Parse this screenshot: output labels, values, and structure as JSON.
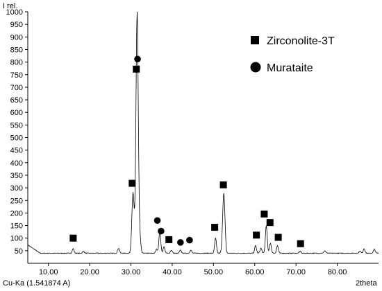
{
  "chart_data": {
    "type": "line",
    "title": "",
    "xlabel": "2theta",
    "ylabel": "I rel.",
    "xlim": [
      5,
      90
    ],
    "ylim": [
      0,
      1000
    ],
    "x_ticks": [
      "10.00",
      "20.00",
      "30.00",
      "40.00",
      "50.00",
      "60.00",
      "70.00",
      "80.00"
    ],
    "x_tick_values": [
      10,
      20,
      30,
      40,
      50,
      60,
      70,
      80
    ],
    "y_ticks": [
      "50",
      "100",
      "150",
      "200",
      "250",
      "300",
      "350",
      "400",
      "450",
      "500",
      "550",
      "600",
      "650",
      "700",
      "750",
      "800",
      "850",
      "900",
      "950",
      "1000"
    ],
    "y_tick_values": [
      50,
      100,
      150,
      200,
      250,
      300,
      350,
      400,
      450,
      500,
      550,
      600,
      650,
      700,
      750,
      800,
      850,
      900,
      950,
      1000
    ],
    "radiation_label": "Cu-Ka (1.541874 A)",
    "baseline": 40,
    "series": [
      {
        "peaks": [
          {
            "x": 16.0,
            "y": 58
          },
          {
            "x": 18.5,
            "y": 48
          },
          {
            "x": 27.0,
            "y": 60
          },
          {
            "x": 30.5,
            "y": 280
          },
          {
            "x": 31.5,
            "y": 1000
          },
          {
            "x": 32.2,
            "y": 90
          },
          {
            "x": 36.2,
            "y": 55
          },
          {
            "x": 37.0,
            "y": 130
          },
          {
            "x": 38.0,
            "y": 65
          },
          {
            "x": 39.8,
            "y": 52
          },
          {
            "x": 42.0,
            "y": 52
          },
          {
            "x": 44.5,
            "y": 52
          },
          {
            "x": 50.5,
            "y": 100
          },
          {
            "x": 52.5,
            "y": 280
          },
          {
            "x": 60.2,
            "y": 70
          },
          {
            "x": 61.5,
            "y": 60
          },
          {
            "x": 62.8,
            "y": 150
          },
          {
            "x": 63.8,
            "y": 80
          },
          {
            "x": 65.5,
            "y": 70
          },
          {
            "x": 71.0,
            "y": 48
          },
          {
            "x": 77.0,
            "y": 50
          },
          {
            "x": 85.5,
            "y": 48
          },
          {
            "x": 86.5,
            "y": 58
          },
          {
            "x": 89.0,
            "y": 55
          }
        ]
      }
    ],
    "legend": [
      {
        "marker": "square",
        "label": "Zirconolite-3T"
      },
      {
        "marker": "circle",
        "label": "Murataite"
      }
    ],
    "legend_position": "top-right",
    "markers": [
      {
        "type": "square",
        "x": 16.0,
        "y": 100
      },
      {
        "type": "square",
        "x": 30.3,
        "y": 318
      },
      {
        "type": "square",
        "x": 31.3,
        "y": 772
      },
      {
        "type": "circle",
        "x": 31.6,
        "y": 812
      },
      {
        "type": "circle",
        "x": 36.4,
        "y": 170
      },
      {
        "type": "circle",
        "x": 37.3,
        "y": 128
      },
      {
        "type": "square",
        "x": 39.2,
        "y": 94
      },
      {
        "type": "circle",
        "x": 42.0,
        "y": 83
      },
      {
        "type": "circle",
        "x": 44.2,
        "y": 92
      },
      {
        "type": "square",
        "x": 50.3,
        "y": 143
      },
      {
        "type": "square",
        "x": 52.4,
        "y": 312
      },
      {
        "type": "square",
        "x": 60.4,
        "y": 112
      },
      {
        "type": "square",
        "x": 62.3,
        "y": 196
      },
      {
        "type": "square",
        "x": 63.7,
        "y": 162
      },
      {
        "type": "square",
        "x": 65.7,
        "y": 103
      },
      {
        "type": "square",
        "x": 71.1,
        "y": 78
      }
    ],
    "grid": false,
    "line_color": "#000000"
  }
}
